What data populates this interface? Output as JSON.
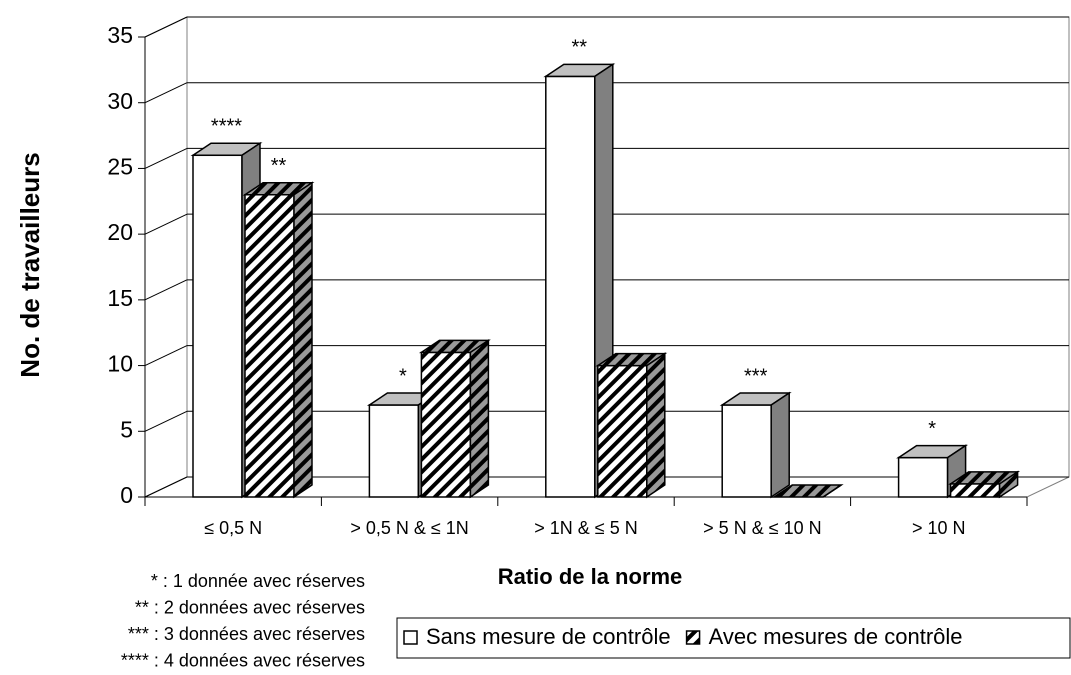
{
  "chart_data": {
    "type": "bar3d",
    "y_label": "No. de travailleurs",
    "x_label": "Ratio de la norme",
    "categories": [
      "≤ 0,5 N",
      "> 0,5 N & ≤ 1N",
      "> 1N & ≤ 5 N",
      "> 5 N & ≤ 10 N",
      "> 10 N"
    ],
    "series": [
      {
        "name": "Sans mesure de contrôle",
        "color": "#ffffff",
        "hatch": false,
        "values": [
          26,
          7,
          32,
          7,
          3
        ],
        "annotations": [
          "****",
          "*",
          "**",
          "***",
          "*"
        ]
      },
      {
        "name": "Avec mesures de contrôle",
        "color": "#ffffff",
        "hatch": true,
        "values": [
          23,
          11,
          10,
          0,
          1
        ],
        "annotations": [
          "**",
          null,
          null,
          null,
          null
        ]
      }
    ],
    "ylim": [
      0,
      35
    ],
    "yticks": [
      0,
      5,
      10,
      15,
      20,
      25,
      30,
      35
    ],
    "grid": true,
    "legend": "bottom-right",
    "notes": [
      "* : 1 donnée avec réserves",
      "** : 2 données avec réserves",
      "*** : 3 données avec réserves",
      "**** : 4 données avec réserves"
    ]
  }
}
